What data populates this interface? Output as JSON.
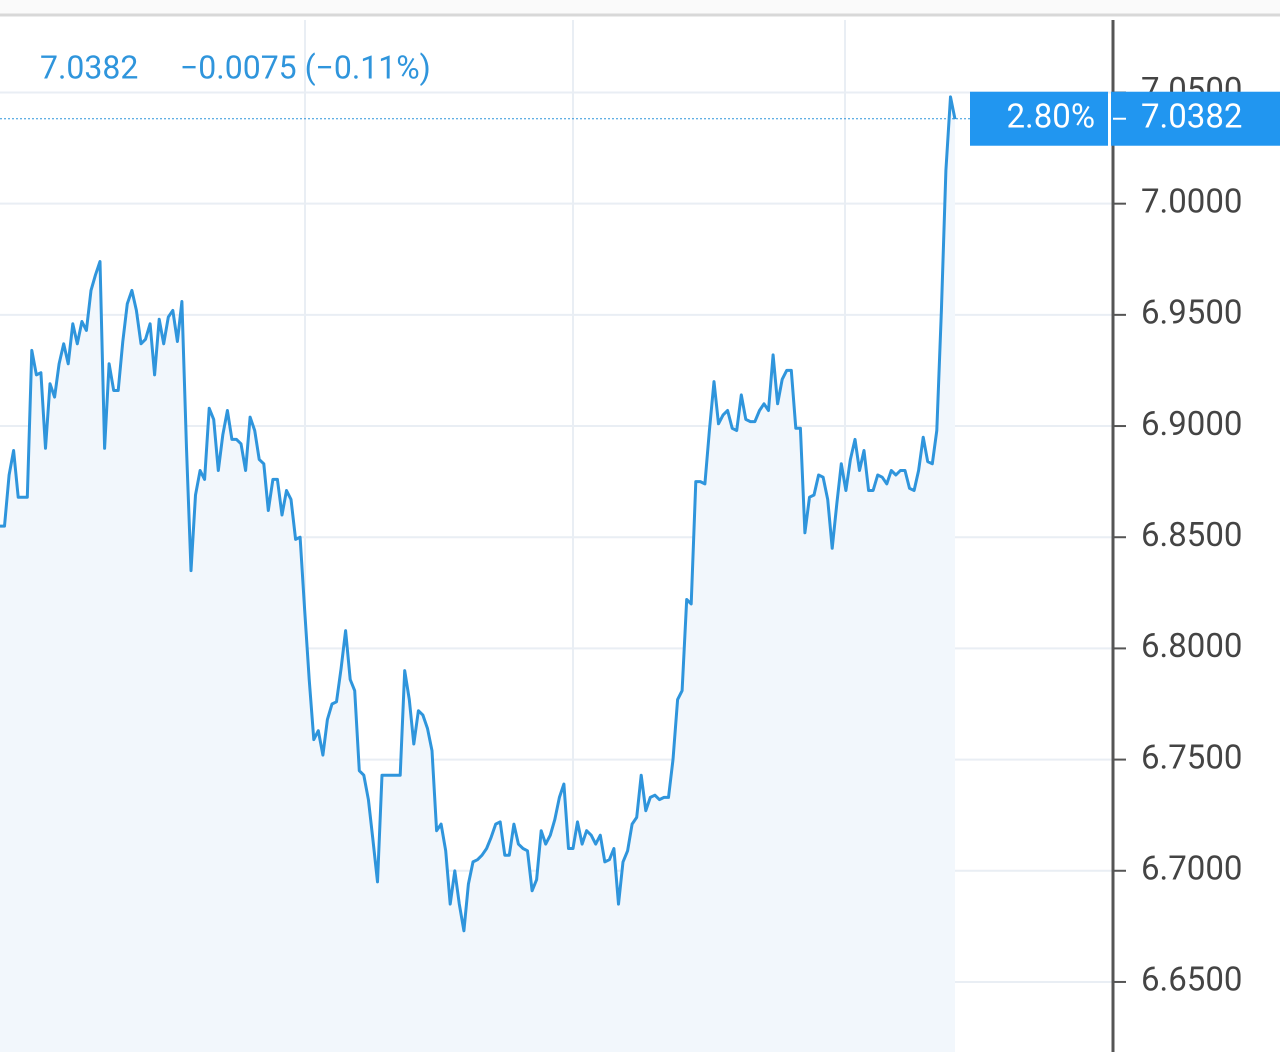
{
  "chart_data": {
    "type": "line",
    "header_price": "7.0382",
    "header_change": "−0.0075 (−0.11%)",
    "last_price": {
      "value": 7.0382,
      "label": "7.0382"
    },
    "percent_label": "2.80%",
    "color": "#2f95dc",
    "values": [
      6.855,
      6.855,
      6.878,
      6.889,
      6.868,
      6.868,
      6.868,
      6.934,
      6.923,
      6.924,
      6.89,
      6.919,
      6.913,
      6.928,
      6.937,
      6.928,
      6.946,
      6.937,
      6.947,
      6.943,
      6.961,
      6.968,
      6.974,
      6.89,
      6.928,
      6.916,
      6.916,
      6.938,
      6.955,
      6.961,
      6.952,
      6.937,
      6.939,
      6.946,
      6.923,
      6.948,
      6.937,
      6.949,
      6.952,
      6.938,
      6.956,
      6.89,
      6.835,
      6.869,
      6.88,
      6.876,
      6.908,
      6.903,
      6.88,
      6.896,
      6.907,
      6.894,
      6.894,
      6.892,
      6.88,
      6.904,
      6.898,
      6.885,
      6.883,
      6.862,
      6.876,
      6.876,
      6.86,
      6.871,
      6.867,
      6.849,
      6.85,
      6.817,
      6.786,
      6.759,
      6.763,
      6.752,
      6.768,
      6.775,
      6.776,
      6.791,
      6.808,
      6.786,
      6.781,
      6.745,
      6.743,
      6.732,
      6.714,
      6.695,
      6.743,
      6.743,
      6.743,
      6.743,
      6.743,
      6.79,
      6.777,
      6.757,
      6.772,
      6.77,
      6.764,
      6.754,
      6.718,
      6.721,
      6.709,
      6.685,
      6.7,
      6.685,
      6.673,
      6.694,
      6.704,
      6.705,
      6.707,
      6.71,
      6.715,
      6.721,
      6.722,
      6.707,
      6.707,
      6.721,
      6.712,
      6.71,
      6.709,
      6.691,
      6.696,
      6.718,
      6.712,
      6.716,
      6.723,
      6.733,
      6.739,
      6.71,
      6.71,
      6.722,
      6.712,
      6.718,
      6.716,
      6.712,
      6.716,
      6.704,
      6.705,
      6.71,
      6.685,
      6.704,
      6.709,
      6.721,
      6.724,
      6.743,
      6.727,
      6.733,
      6.734,
      6.732,
      6.733,
      6.733,
      6.75,
      6.777,
      6.781,
      6.822,
      6.82,
      6.875,
      6.875,
      6.874,
      6.898,
      6.92,
      6.901,
      6.905,
      6.907,
      6.899,
      6.898,
      6.914,
      6.903,
      6.902,
      6.902,
      6.907,
      6.91,
      6.907,
      6.932,
      6.91,
      6.921,
      6.925,
      6.925,
      6.899,
      6.899,
      6.852,
      6.868,
      6.869,
      6.878,
      6.877,
      6.867,
      6.845,
      6.865,
      6.883,
      6.871,
      6.885,
      6.894,
      6.88,
      6.889,
      6.871,
      6.871,
      6.878,
      6.877,
      6.874,
      6.88,
      6.878,
      6.88,
      6.88,
      6.872,
      6.871,
      6.88,
      6.895,
      6.884,
      6.883,
      6.898,
      6.952,
      7.015,
      7.048,
      7.038
    ],
    "ylim": [
      6.6185,
      7.0826
    ],
    "yticks": [
      {
        "value": 6.65,
        "label": "6.6500"
      },
      {
        "value": 6.7,
        "label": "6.7000"
      },
      {
        "value": 6.75,
        "label": "6.7500"
      },
      {
        "value": 6.8,
        "label": "6.8000"
      },
      {
        "value": 6.85,
        "label": "6.8500"
      },
      {
        "value": 6.9,
        "label": "6.9000"
      },
      {
        "value": 6.95,
        "label": "6.9500"
      },
      {
        "value": 7.0,
        "label": "7.0000"
      },
      {
        "value": 7.05,
        "label": "7.0500"
      }
    ],
    "grid": true
  }
}
